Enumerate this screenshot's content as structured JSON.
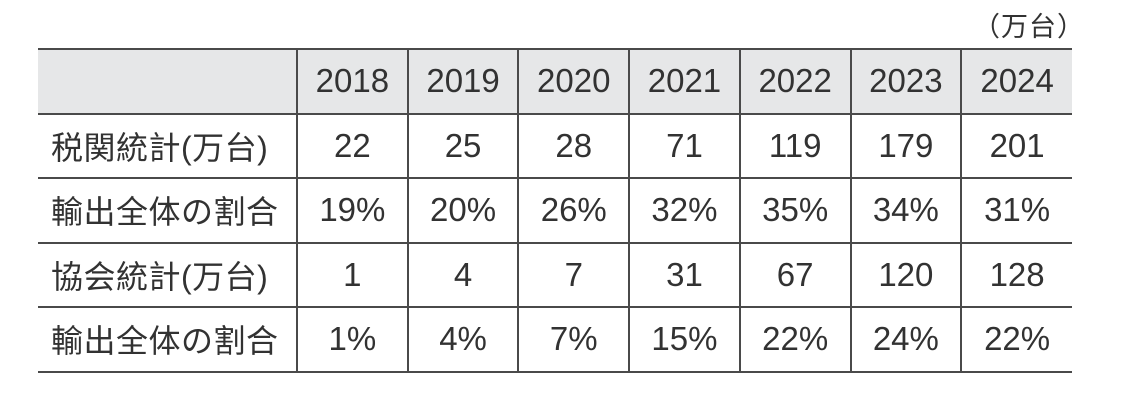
{
  "unit_label": "（万台）",
  "table": {
    "years": [
      "2018",
      "2019",
      "2020",
      "2021",
      "2022",
      "2023",
      "2024"
    ],
    "rows": [
      {
        "label": "税関統計(万台)",
        "values": [
          "22",
          "25",
          "28",
          "71",
          "119",
          "179",
          "201"
        ]
      },
      {
        "label": "輸出全体の割合",
        "values": [
          "19%",
          "20%",
          "26%",
          "32%",
          "35%",
          "34%",
          "31%"
        ]
      },
      {
        "label": "協会統計(万台)",
        "values": [
          "1",
          "4",
          "7",
          "31",
          "67",
          "120",
          "128"
        ]
      },
      {
        "label": "輸出全体の割合",
        "values": [
          "1%",
          "4%",
          "7%",
          "15%",
          "22%",
          "24%",
          "22%"
        ]
      }
    ]
  },
  "colors": {
    "header_bg": "#e6e7e8",
    "border": "#4a4a4a",
    "text": "#323232",
    "background": "#ffffff"
  },
  "chart_data": {
    "type": "table",
    "title": "（万台）",
    "unit": "万台",
    "categories": [
      "2018",
      "2019",
      "2020",
      "2021",
      "2022",
      "2023",
      "2024"
    ],
    "series": [
      {
        "name": "税関統計(万台)",
        "unit": "万台",
        "values": [
          22,
          25,
          28,
          71,
          119,
          179,
          201
        ]
      },
      {
        "name": "輸出全体の割合",
        "unit": "%",
        "values": [
          19,
          20,
          26,
          32,
          35,
          34,
          31
        ]
      },
      {
        "name": "協会統計(万台)",
        "unit": "万台",
        "values": [
          1,
          4,
          7,
          31,
          67,
          120,
          128
        ]
      },
      {
        "name": "輸出全体の割合",
        "unit": "%",
        "values": [
          1,
          4,
          7,
          15,
          22,
          24,
          22
        ]
      }
    ],
    "layout": {
      "header_row_shaded": true,
      "outer_vertical_borders": false
    }
  }
}
